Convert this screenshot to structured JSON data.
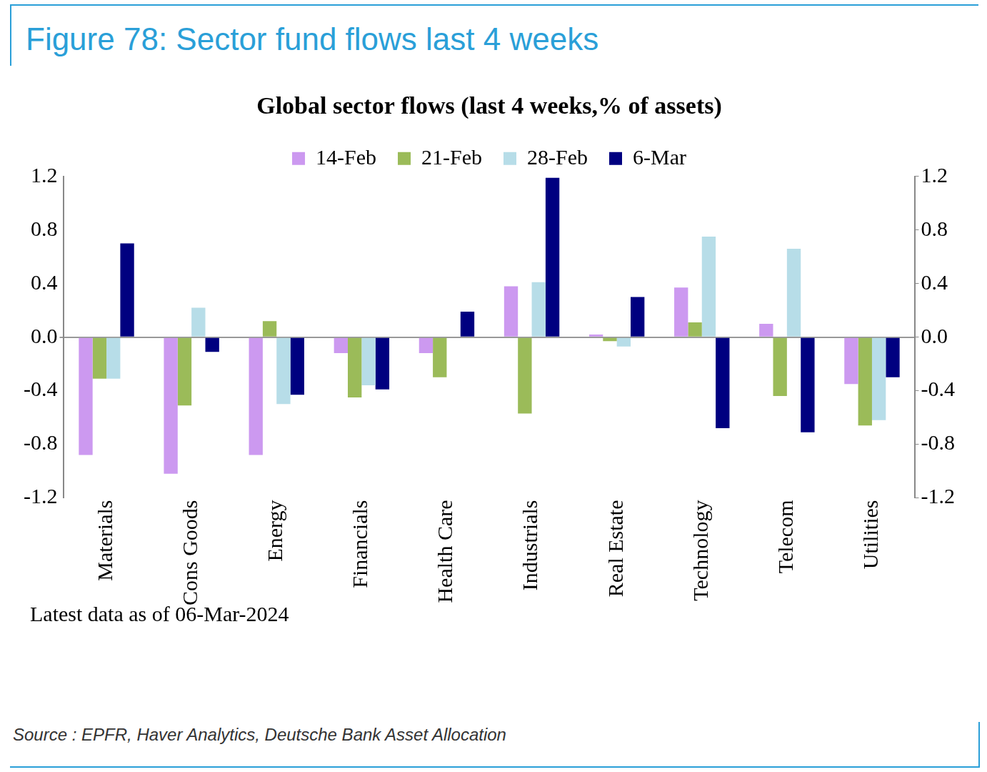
{
  "header": {
    "title": "Figure 78: Sector fund flows last 4 weeks"
  },
  "source": "Source : EPFR, Haver Analytics, Deutsche Bank Asset Allocation",
  "chart_data": {
    "type": "bar",
    "title": "Global sector flows (last 4 weeks,% of assets)",
    "annotations": [
      "Latest data as of 06-Mar-2024"
    ],
    "categories": [
      "Materials",
      "Cons Goods",
      "Energy",
      "Financials",
      "Health Care",
      "Industrials",
      "Real Estate",
      "Technology",
      "Telecom",
      "Utilities"
    ],
    "series": [
      {
        "name": "14-Feb",
        "color": "#cc99f0",
        "values": [
          -0.88,
          -1.02,
          -0.88,
          -0.12,
          -0.12,
          0.38,
          0.02,
          0.37,
          0.1,
          -0.35
        ]
      },
      {
        "name": "21-Feb",
        "color": "#9bbb59",
        "values": [
          -0.31,
          -0.51,
          0.12,
          -0.45,
          -0.3,
          -0.57,
          -0.03,
          0.11,
          -0.44,
          -0.66
        ]
      },
      {
        "name": "28-Feb",
        "color": "#b7dde8",
        "values": [
          -0.31,
          0.22,
          -0.5,
          -0.36,
          0.0,
          0.41,
          -0.07,
          0.75,
          0.66,
          -0.62
        ]
      },
      {
        "name": "6-Mar",
        "color": "#000080",
        "values": [
          0.7,
          -0.11,
          -0.43,
          -0.39,
          0.19,
          1.19,
          0.3,
          -0.68,
          -0.71,
          -0.3
        ]
      }
    ],
    "ylim": [
      -1.2,
      1.2
    ],
    "yticks": [
      -1.2,
      -0.8,
      -0.4,
      {
        "value": 0,
        "label": "0.0"
      },
      0.4,
      0.8,
      1.2
    ],
    "y2lim": [
      -1.2,
      1.2
    ],
    "y2ticks": [
      -1.2,
      -0.8,
      -0.4,
      {
        "value": 0,
        "label": "0.0"
      },
      0.4,
      0.8,
      1.2
    ],
    "grid": false,
    "legend": "top"
  }
}
